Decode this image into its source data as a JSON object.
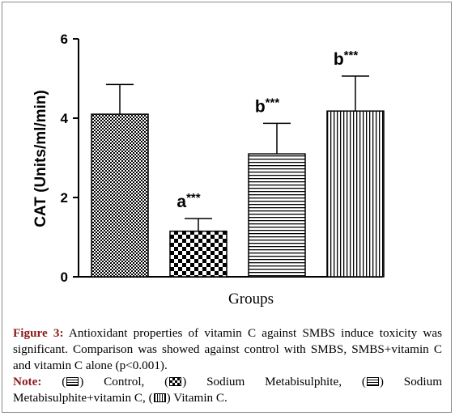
{
  "chart_data": {
    "type": "bar",
    "categories": [
      "Control",
      "Sodium Metabisulphite",
      "Sodium Metabisulphite+vitamin C",
      "Vitamin C"
    ],
    "values": [
      4.1,
      1.15,
      3.1,
      4.18
    ],
    "errors": [
      0.75,
      0.32,
      0.77,
      0.88
    ],
    "annotations": [
      {
        "letter": "",
        "stars": ""
      },
      {
        "letter": "a",
        "stars": "***"
      },
      {
        "letter": "b",
        "stars": "***"
      },
      {
        "letter": "b",
        "stars": "***"
      }
    ],
    "patterns": [
      "checker-fine",
      "checker-coarse",
      "horizontal-lines",
      "vertical-lines"
    ],
    "xlabel": "Groups",
    "ylabel": "CAT (Units/ml/min)",
    "ylim": [
      0,
      6
    ],
    "yticks": [
      "0",
      "2",
      "4",
      "6"
    ],
    "grid": false,
    "bar_color": "#000000"
  },
  "caption": {
    "figure_label": "Figure 3:",
    "figure_text": "Antioxidant properties of vitamin C against SMBS induce toxicity was significant. Comparison was showed against control with SMBS, SMBS+vitamin C and vitamin C alone (p<0.001).",
    "note_label": "Note:",
    "legend": [
      {
        "label": "Control,"
      },
      {
        "label": "Sodium Metabisulphite,"
      },
      {
        "label": "Sodium Metabisulphite+vitamin C,"
      },
      {
        "label": "Vitamin C."
      }
    ]
  }
}
